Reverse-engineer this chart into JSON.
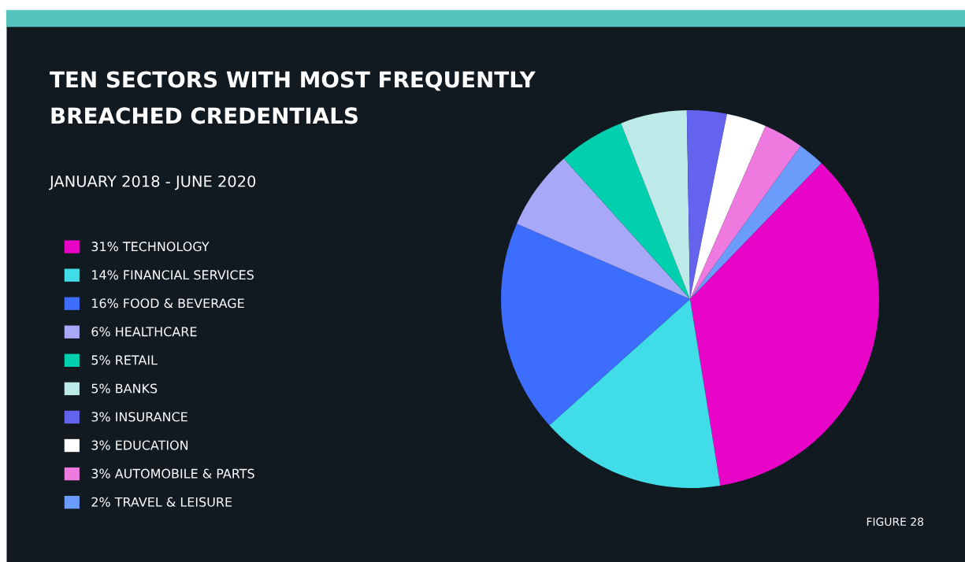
{
  "chart_data": {
    "type": "pie",
    "title": "TEN SECTORS WITH MOST FREQUENTLY\nBREACHED CREDENTIALS",
    "subtitle": "JANUARY 2018 - JUNE 2020",
    "categories": [
      "TECHNOLOGY",
      "FINANCIAL SERVICES",
      "FOOD & BEVERAGE",
      "HEALTHCARE",
      "RETAIL",
      "BANKS",
      "INSURANCE",
      "EDUCATION",
      "AUTOMOBILE & PARTS",
      "TRAVEL & LEISURE"
    ],
    "values": [
      31,
      14,
      16,
      6,
      5,
      5,
      3,
      3,
      3,
      2
    ],
    "value_labels": [
      "31%",
      "14%",
      "16%",
      "6%",
      "5%",
      "5%",
      "3%",
      "3%",
      "3%",
      "2%"
    ],
    "colors": [
      "#e905c7",
      "#40dde8",
      "#3d6dfc",
      "#a8a8f8",
      "#00d0ad",
      "#bdeae8",
      "#6363ee",
      "#ffffff",
      "#ee7ae0",
      "#6b9cfc"
    ],
    "legend": "left",
    "annotations": [
      "FIGURE 28"
    ]
  }
}
